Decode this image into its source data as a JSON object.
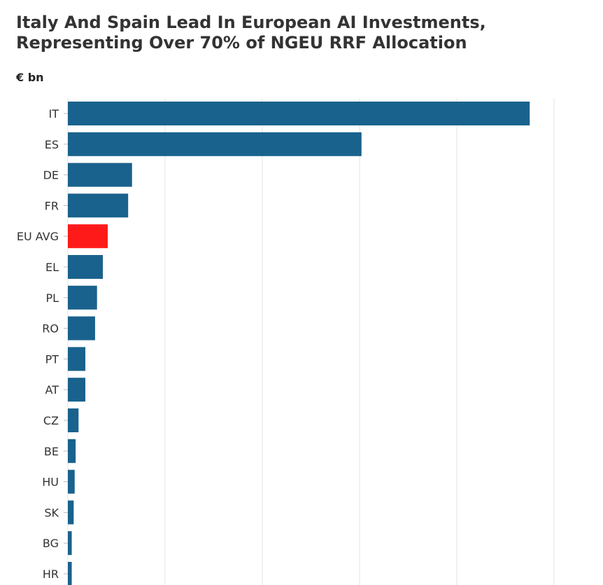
{
  "title": "Italy And Spain Lead In European AI Investments, Representing Over 70% of NGEU RRF Allocation",
  "unit_label": "€ bn",
  "chart_data": {
    "type": "bar",
    "orientation": "horizontal",
    "title": "Italy And Spain Lead In European AI Investments, Representing Over 70% of NGEU RRF Allocation",
    "ylabel": "€ bn",
    "categories": [
      "IT",
      "ES",
      "DE",
      "FR",
      "EU AVG",
      "EL",
      "PL",
      "RO",
      "PT",
      "AT",
      "CZ",
      "BE",
      "HU",
      "SK",
      "BG",
      "HR"
    ],
    "values": [
      4.75,
      3.02,
      0.66,
      0.62,
      0.41,
      0.36,
      0.3,
      0.28,
      0.18,
      0.18,
      0.11,
      0.08,
      0.07,
      0.06,
      0.04,
      0.04
    ],
    "xlim": [
      0,
      5.0
    ],
    "grid": true,
    "colors": {
      "bar": "#19628d",
      "highlight": "#ff1a1a",
      "grid": "#e3e3e3"
    },
    "highlight_category": "EU AVG"
  }
}
